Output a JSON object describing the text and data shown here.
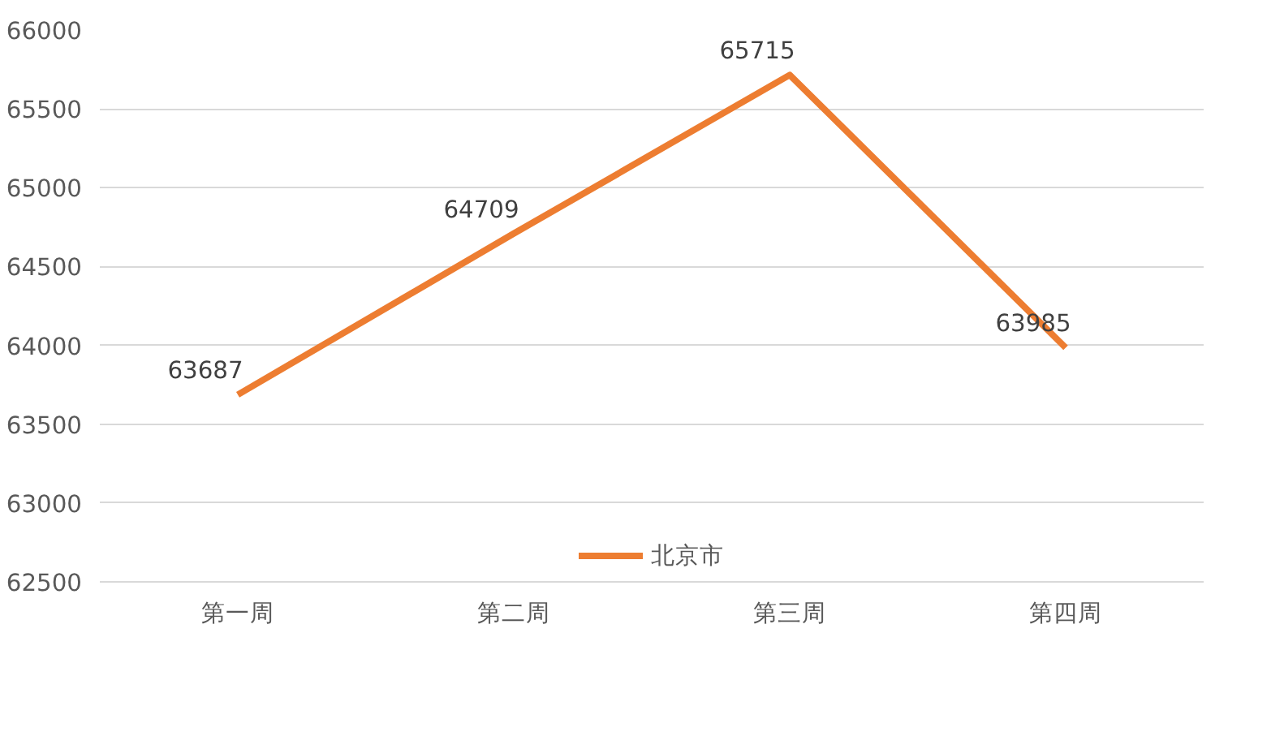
{
  "chart_data": {
    "type": "line",
    "categories": [
      "第一周",
      "第二周",
      "第三周",
      "第四周"
    ],
    "series": [
      {
        "name": "北京市",
        "color": "#ed7d31",
        "values": [
          63687,
          64709,
          65715,
          63985
        ]
      }
    ],
    "ylim": [
      62500,
      66000
    ],
    "yticks": [
      62500,
      63000,
      63500,
      64000,
      64500,
      65000,
      65500,
      66000
    ],
    "grid": "y",
    "legend": "bottom",
    "data_labels": true,
    "marker": "none",
    "line_style": "solid"
  }
}
